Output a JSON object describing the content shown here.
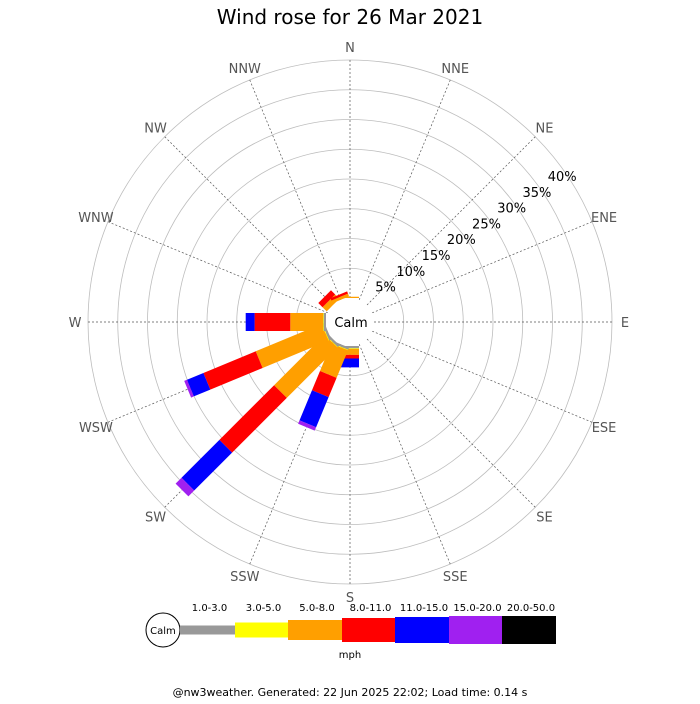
{
  "chart_data": {
    "type": "wind-rose",
    "title": "Wind rose for 26 Mar 2021",
    "calm_label": "Calm",
    "directions": [
      "N",
      "NNE",
      "NE",
      "ENE",
      "E",
      "ESE",
      "SE",
      "SSE",
      "S",
      "SSW",
      "SW",
      "WSW",
      "W",
      "WNW",
      "NW",
      "NNW"
    ],
    "radial_ticks": [
      "5%",
      "10%",
      "15%",
      "20%",
      "25%",
      "30%",
      "35%",
      "40%"
    ],
    "radial_max_percent": 40,
    "legend_labels": [
      "1.0-3.0",
      "3.0-5.0",
      "5.0-8.0",
      "8.0-11.0",
      "11.0-15.0",
      "15.0-20.0",
      "20.0-50.0"
    ],
    "legend_colors": [
      "#999999",
      "#ffff00",
      "#ff9f00",
      "#ff0000",
      "#0000ff",
      "#a020f0",
      "#000000"
    ],
    "unit": "mph",
    "series_percent_by_direction": {
      "N": [
        0,
        0,
        0.2,
        0,
        0,
        0,
        0
      ],
      "NNE": [
        0,
        0,
        0,
        0,
        0,
        0,
        0
      ],
      "NE": [
        0,
        0,
        0,
        0,
        0,
        0,
        0
      ],
      "ENE": [
        0,
        0,
        0,
        0,
        0,
        0,
        0
      ],
      "E": [
        0,
        0,
        0,
        0,
        0,
        0,
        0
      ],
      "ESE": [
        0,
        0,
        0,
        0,
        0,
        0,
        0
      ],
      "SE": [
        0,
        0,
        0,
        0,
        0,
        0,
        0
      ],
      "SSE": [
        0,
        0,
        0,
        0,
        0,
        0,
        0
      ],
      "S": [
        0.4,
        0.1,
        1,
        0.6,
        1.5,
        0,
        0
      ],
      "SSW": [
        0.4,
        0.1,
        5,
        3.5,
        5.5,
        0.6,
        0
      ],
      "SW": [
        0.4,
        0.1,
        12,
        13,
        9,
        1.4,
        0
      ],
      "WSW": [
        0.4,
        0.1,
        12,
        9.5,
        3,
        0.5,
        0
      ],
      "W": [
        0.4,
        0.1,
        5.5,
        6,
        1.5,
        0,
        0
      ],
      "WNW": [
        0,
        0,
        0,
        0,
        0,
        0,
        0
      ],
      "NW": [
        0,
        0,
        1,
        1,
        0,
        0,
        0
      ],
      "NNW": [
        0,
        0,
        0.5,
        0.4,
        0,
        0,
        0
      ]
    }
  },
  "footer": "@nw3weather. Generated: 22 Jun 2025 22:02; Load time: 0.14 s"
}
